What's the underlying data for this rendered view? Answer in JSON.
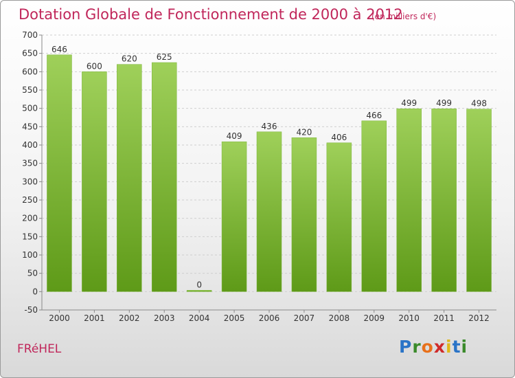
{
  "chart_data": {
    "type": "bar",
    "title": "Dotation Globale de Fonctionnement de 2000 à 2012",
    "subtitle": "(en milliers d'€)",
    "categories": [
      "2000",
      "2001",
      "2002",
      "2003",
      "2004",
      "2005",
      "2006",
      "2007",
      "2008",
      "2009",
      "2010",
      "2011",
      "2012"
    ],
    "values": [
      646,
      600,
      620,
      625,
      0,
      409,
      436,
      420,
      406,
      466,
      499,
      499,
      498
    ],
    "ylim": [
      -50,
      700
    ],
    "yticks": [
      -50,
      0,
      50,
      100,
      150,
      200,
      250,
      300,
      350,
      400,
      450,
      500,
      550,
      600,
      650,
      700
    ],
    "grid": true,
    "xlabel": "",
    "ylabel": ""
  },
  "footer": {
    "commune": "FRéHEL",
    "logo_letters": [
      {
        "ch": "P",
        "color": "#2a74c7"
      },
      {
        "ch": "r",
        "color": "#3a8a2a"
      },
      {
        "ch": "o",
        "color": "#e8701a"
      },
      {
        "ch": "x",
        "color": "#cf2a2a"
      },
      {
        "ch": "i",
        "color": "#e0b81a"
      },
      {
        "ch": "t",
        "color": "#2a74c7"
      },
      {
        "ch": "i",
        "color": "#3a8a2a"
      }
    ]
  },
  "colors": {
    "title": "#c0265a",
    "bar_top": "#9fd05a",
    "bar_bottom": "#5e9a18",
    "grid": "#cfcfcf",
    "axis": "#888888"
  }
}
